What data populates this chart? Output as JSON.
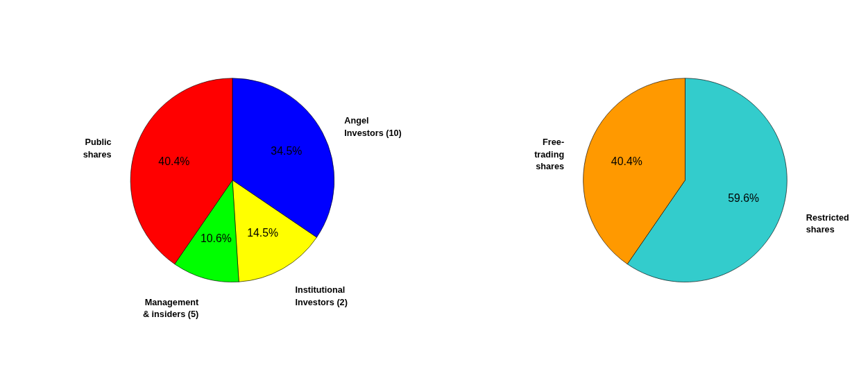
{
  "chart_data": [
    {
      "type": "pie",
      "categories": [
        "Angel\nInvestors (10)",
        "Institutional\nInvestors (2)",
        "Management\n& insiders (5)",
        "Public\nshares"
      ],
      "values": [
        34.5,
        14.5,
        10.6,
        40.4
      ],
      "colors": [
        "#0000ff",
        "#ffff00",
        "#00ff00",
        "#ff0000"
      ],
      "value_labels": [
        "34.5%",
        "14.5%",
        "10.6%",
        "40.4%"
      ]
    },
    {
      "type": "pie",
      "categories": [
        "Restricted\nshares",
        "Free-\ntrading\nshares"
      ],
      "values": [
        59.6,
        40.4
      ],
      "colors": [
        "#33cccc",
        "#ff9900"
      ],
      "value_labels": [
        "59.6%",
        "40.4%"
      ]
    }
  ]
}
